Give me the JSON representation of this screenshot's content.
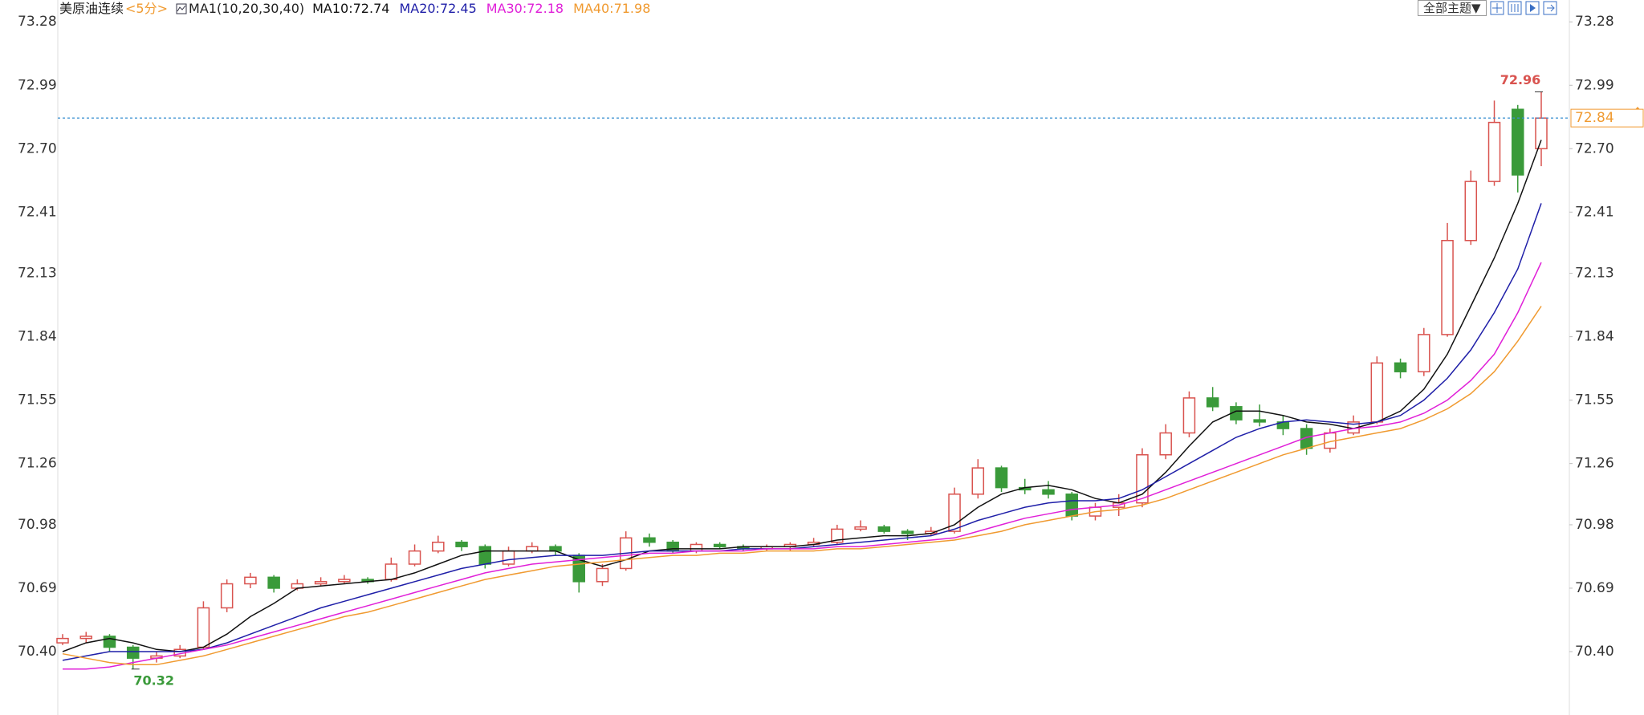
{
  "chart_data": {
    "type": "candlestick",
    "title": "美原油连续",
    "subtitle": "<5分>",
    "indicator": "MA1(10,20,30,40)",
    "up_color": "#d9534f",
    "down_color": "#3a9a3a",
    "ylim": [
      70.11,
      73.38
    ],
    "yticks": [
      73.28,
      72.99,
      {
        "value": 72.7,
        "label": "72.70"
      },
      72.41,
      72.13,
      71.84,
      71.55,
      71.26,
      70.98,
      70.69,
      {
        "value": 70.4,
        "label": "70.40"
      }
    ],
    "open": [
      70.44,
      70.46,
      70.47,
      70.42,
      70.37,
      70.38,
      70.42,
      70.6,
      70.71,
      70.74,
      70.69,
      70.71,
      70.72,
      70.73,
      70.73,
      70.8,
      70.86,
      70.9,
      70.88,
      70.8,
      70.86,
      70.88,
      70.84,
      70.72,
      70.78,
      70.92,
      70.9,
      70.86,
      70.89,
      70.88,
      70.87,
      70.88,
      70.89,
      70.9,
      70.96,
      70.97,
      70.95,
      70.94,
      70.95,
      71.12,
      71.24,
      71.15,
      71.14,
      71.12,
      71.02,
      71.06,
      71.08,
      71.3,
      71.4,
      71.56,
      71.52,
      71.46,
      71.45,
      71.42,
      71.33,
      71.4,
      71.45,
      71.72,
      71.68,
      71.85,
      72.28,
      72.55,
      72.88,
      72.7
    ],
    "high": [
      70.48,
      70.49,
      70.48,
      70.43,
      70.4,
      70.43,
      70.63,
      70.73,
      70.76,
      70.75,
      70.73,
      70.74,
      70.75,
      70.74,
      70.83,
      70.89,
      70.93,
      70.91,
      70.89,
      70.88,
      70.9,
      70.89,
      70.85,
      70.8,
      70.95,
      70.94,
      70.91,
      70.9,
      70.9,
      70.89,
      70.89,
      70.9,
      70.92,
      70.98,
      71.0,
      70.98,
      70.96,
      70.97,
      71.15,
      71.28,
      71.25,
      71.19,
      71.18,
      71.13,
      71.08,
      71.12,
      71.33,
      71.44,
      71.59,
      71.61,
      71.54,
      71.53,
      71.48,
      71.44,
      71.42,
      71.48,
      71.75,
      71.74,
      71.88,
      72.36,
      72.6,
      72.92,
      72.9,
      72.96
    ],
    "low": [
      70.43,
      70.44,
      70.4,
      70.32,
      70.35,
      70.37,
      70.41,
      70.58,
      70.69,
      70.67,
      70.68,
      70.7,
      70.71,
      70.71,
      70.72,
      70.79,
      70.85,
      70.86,
      70.78,
      70.79,
      70.85,
      70.84,
      70.67,
      70.7,
      70.77,
      70.88,
      70.85,
      70.85,
      70.87,
      70.86,
      70.86,
      70.86,
      70.88,
      70.89,
      70.95,
      70.94,
      70.91,
      70.93,
      70.94,
      71.1,
      71.13,
      71.12,
      71.1,
      71.0,
      71.0,
      71.02,
      71.06,
      71.28,
      71.38,
      71.5,
      71.44,
      71.43,
      71.39,
      71.3,
      71.31,
      71.39,
      71.44,
      71.65,
      71.66,
      71.84,
      72.26,
      72.53,
      72.5,
      72.62
    ],
    "close": [
      70.46,
      70.47,
      70.42,
      70.37,
      70.38,
      70.41,
      70.6,
      70.71,
      70.74,
      70.69,
      70.71,
      70.72,
      70.73,
      70.72,
      70.8,
      70.86,
      70.9,
      70.88,
      70.8,
      70.86,
      70.88,
      70.86,
      70.72,
      70.78,
      70.92,
      70.9,
      70.86,
      70.89,
      70.88,
      70.87,
      70.88,
      70.89,
      70.9,
      70.96,
      70.97,
      70.95,
      70.94,
      70.95,
      71.12,
      71.24,
      71.15,
      71.14,
      71.12,
      71.02,
      71.06,
      71.08,
      71.3,
      71.4,
      71.56,
      71.52,
      71.46,
      71.45,
      71.42,
      71.33,
      71.4,
      71.45,
      71.72,
      71.68,
      71.85,
      72.28,
      72.55,
      72.82,
      72.58,
      72.84
    ],
    "series": [
      {
        "name": "MA10",
        "header_label": "MA10:72.74",
        "color": "#111111",
        "values": [
          70.4,
          70.44,
          70.46,
          70.44,
          70.41,
          70.4,
          70.42,
          70.48,
          70.56,
          70.62,
          70.69,
          70.7,
          70.71,
          70.72,
          70.73,
          70.76,
          70.8,
          70.84,
          70.86,
          70.86,
          70.86,
          70.86,
          70.82,
          70.79,
          70.82,
          70.86,
          70.87,
          70.87,
          70.87,
          70.88,
          70.88,
          70.88,
          70.89,
          70.91,
          70.92,
          70.93,
          70.93,
          70.94,
          70.98,
          71.06,
          71.12,
          71.15,
          71.16,
          71.14,
          71.1,
          71.08,
          71.12,
          71.22,
          71.34,
          71.45,
          71.5,
          71.5,
          71.48,
          71.45,
          71.44,
          71.42,
          71.45,
          71.5,
          71.6,
          71.76,
          71.98,
          72.2,
          72.45,
          72.74
        ]
      },
      {
        "name": "MA20",
        "header_label": "MA20:72.45",
        "color": "#1f1fa8",
        "values": [
          70.36,
          70.38,
          70.4,
          70.4,
          70.4,
          70.4,
          70.41,
          70.44,
          70.48,
          70.52,
          70.56,
          70.6,
          70.63,
          70.66,
          70.69,
          70.72,
          70.75,
          70.78,
          70.8,
          70.82,
          70.83,
          70.84,
          70.84,
          70.84,
          70.85,
          70.86,
          70.86,
          70.86,
          70.86,
          70.87,
          70.87,
          70.87,
          70.88,
          70.89,
          70.9,
          70.91,
          70.92,
          70.93,
          70.96,
          71.0,
          71.03,
          71.06,
          71.08,
          71.09,
          71.09,
          71.1,
          71.14,
          71.2,
          71.26,
          71.32,
          71.38,
          71.42,
          71.45,
          71.46,
          71.45,
          71.44,
          71.45,
          71.48,
          71.55,
          71.65,
          71.78,
          71.95,
          72.15,
          72.45
        ]
      },
      {
        "name": "MA30",
        "header_label": "MA30:72.18",
        "color": "#e020d8",
        "values": [
          70.32,
          70.32,
          70.33,
          70.35,
          70.37,
          70.39,
          70.41,
          70.43,
          70.46,
          70.49,
          70.52,
          70.55,
          70.58,
          70.61,
          70.64,
          70.67,
          70.7,
          70.73,
          70.76,
          70.78,
          70.8,
          70.81,
          70.82,
          70.83,
          70.84,
          70.85,
          70.85,
          70.86,
          70.86,
          70.86,
          70.87,
          70.87,
          70.87,
          70.88,
          70.88,
          70.89,
          70.9,
          70.91,
          70.92,
          70.95,
          70.98,
          71.01,
          71.03,
          71.05,
          71.06,
          71.07,
          71.1,
          71.14,
          71.18,
          71.22,
          71.26,
          71.3,
          71.34,
          71.38,
          71.4,
          71.42,
          71.43,
          71.45,
          71.49,
          71.55,
          71.64,
          71.76,
          71.95,
          72.18
        ]
      },
      {
        "name": "MA40",
        "header_label": "MA40:71.98",
        "color": "#f09a30",
        "values": [
          70.39,
          70.37,
          70.35,
          70.34,
          70.34,
          70.36,
          70.38,
          70.41,
          70.44,
          70.47,
          70.5,
          70.53,
          70.56,
          70.58,
          70.61,
          70.64,
          70.67,
          70.7,
          70.73,
          70.75,
          70.77,
          70.79,
          70.8,
          70.81,
          70.82,
          70.83,
          70.84,
          70.84,
          70.85,
          70.85,
          70.86,
          70.86,
          70.86,
          70.87,
          70.87,
          70.88,
          70.89,
          70.9,
          70.91,
          70.93,
          70.95,
          70.98,
          71.0,
          71.02,
          71.04,
          71.05,
          71.07,
          71.1,
          71.14,
          71.18,
          71.22,
          71.26,
          71.3,
          71.33,
          71.36,
          71.38,
          71.4,
          71.42,
          71.46,
          71.51,
          71.58,
          71.68,
          71.82,
          71.98
        ]
      }
    ],
    "max_label": 72.96,
    "min_label": 70.32,
    "last_price": 72.84
  },
  "toolbar": {
    "theme_button": "全部主题▼"
  }
}
